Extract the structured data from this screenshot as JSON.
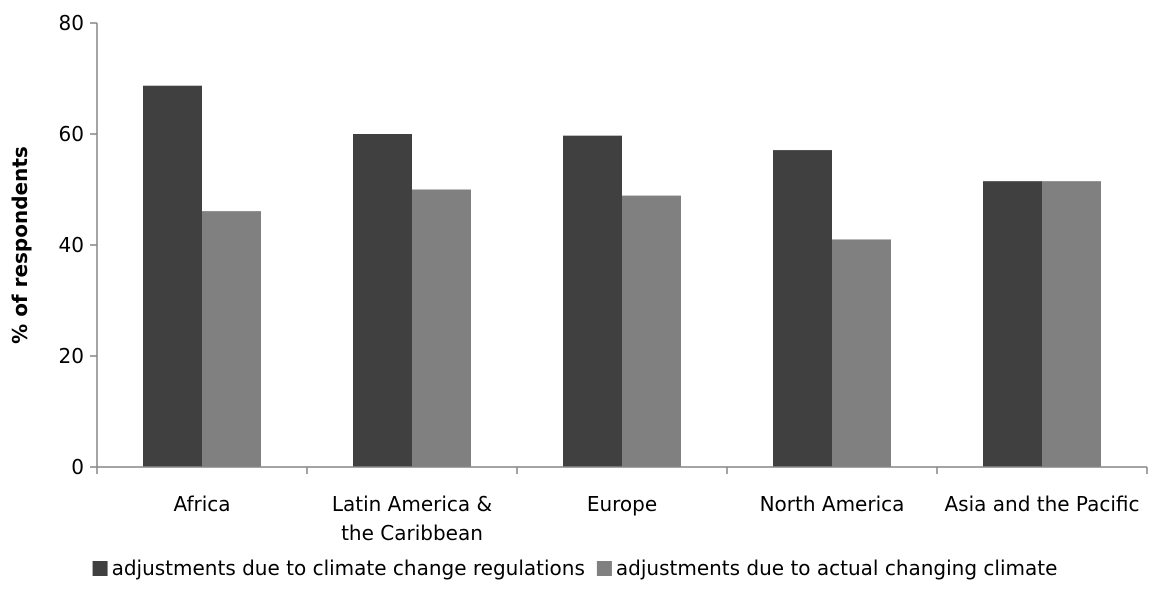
{
  "chart_data": {
    "type": "bar",
    "title": "",
    "xlabel": "",
    "ylabel": "% of respondents",
    "categories": [
      [
        "Africa"
      ],
      [
        "Latin America &",
        "the Caribbean"
      ],
      [
        "Europe"
      ],
      [
        "North America"
      ],
      [
        "Asia and the Pacific"
      ]
    ],
    "series": [
      {
        "name": "adjustments due to climate change regulations",
        "color": "#404040",
        "values": [
          68.7,
          60.0,
          59.7,
          57.1,
          51.5
        ]
      },
      {
        "name": "adjustments due to actual changing climate",
        "color": "#808080",
        "values": [
          46.1,
          50.0,
          48.9,
          41.0,
          51.5
        ]
      }
    ],
    "ylim": [
      0,
      80
    ],
    "yticks": [
      0,
      20,
      40,
      60,
      80
    ],
    "grid": false,
    "legend_position": "bottom"
  }
}
